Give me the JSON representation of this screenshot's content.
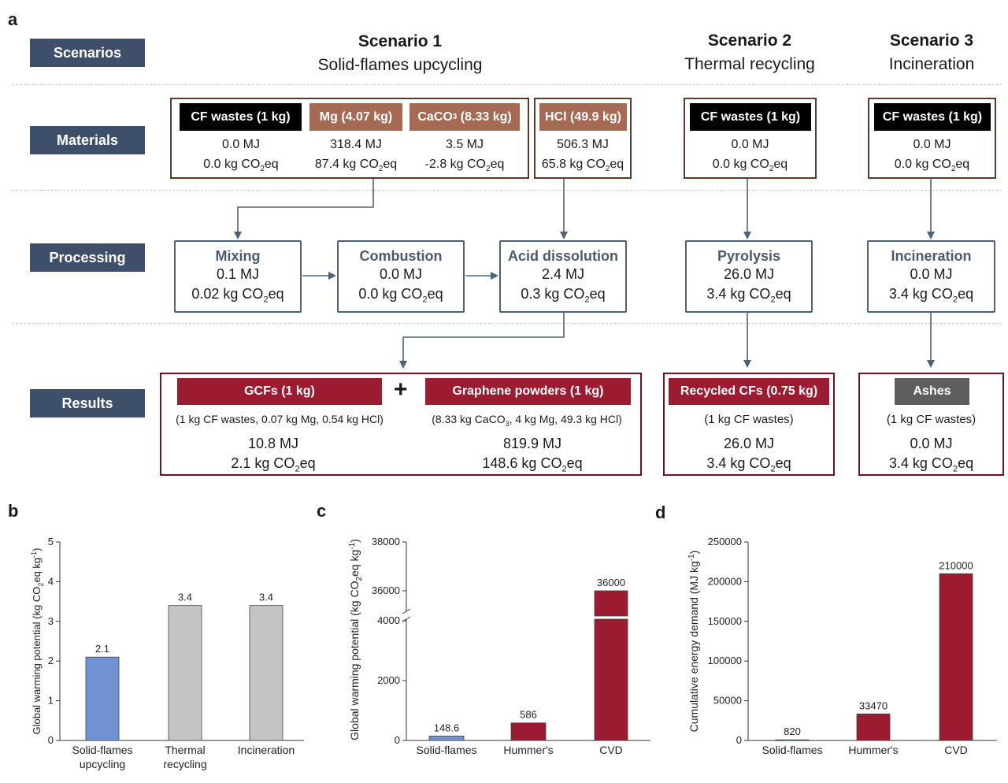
{
  "panel_a": {
    "letter": "a",
    "row_labels": {
      "scenarios": "Scenarios",
      "materials": "Materials",
      "processing": "Processing",
      "results": "Results"
    },
    "scenarios": [
      {
        "title": "Scenario 1",
        "subtitle": "Solid-flames upcycling"
      },
      {
        "title": "Scenario 2",
        "subtitle": "Thermal recycling"
      },
      {
        "title": "Scenario 3",
        "subtitle": "Incineration"
      }
    ],
    "materials": {
      "s1": [
        {
          "label": "CF wastes (1 kg)",
          "energy": "0.0 MJ",
          "co2": "0.0 kg CO",
          "co2_sub": "2",
          "co2_tail": "eq"
        },
        {
          "label": "Mg (4.07 kg)",
          "energy": "318.4 MJ",
          "co2": "87.4 kg CO",
          "co2_sub": "2",
          "co2_tail": "eq"
        },
        {
          "label_main": "CaCO",
          "label_sub": "3",
          "label_tail": " (8.33 kg)",
          "energy": "3.5 MJ",
          "co2": "-2.8 kg CO",
          "co2_sub": "2",
          "co2_tail": "eq"
        }
      ],
      "hcl": {
        "label": "HCl (49.9 kg)",
        "energy": "506.3 MJ",
        "co2": "65.8 kg CO",
        "co2_sub": "2",
        "co2_tail": "eq"
      },
      "s2": {
        "label": "CF wastes (1 kg)",
        "energy": "0.0 MJ",
        "co2": "0.0 kg CO",
        "co2_sub": "2",
        "co2_tail": "eq"
      },
      "s3": {
        "label": "CF wastes (1 kg)",
        "energy": "0.0 MJ",
        "co2": "0.0 kg CO",
        "co2_sub": "2",
        "co2_tail": "eq"
      }
    },
    "processing": [
      {
        "title": "Mixing",
        "energy": "0.1 MJ",
        "co2": "0.02 kg CO",
        "co2_sub": "2",
        "co2_tail": "eq"
      },
      {
        "title": "Combustion",
        "energy": "0.0 MJ",
        "co2": "0.0 kg CO",
        "co2_sub": "2",
        "co2_tail": "eq"
      },
      {
        "title": "Acid dissolution",
        "energy": "2.4 MJ",
        "co2": "0.3 kg CO",
        "co2_sub": "2",
        "co2_tail": "eq"
      },
      {
        "title": "Pyrolysis",
        "energy": "26.0 MJ",
        "co2": "3.4 kg CO",
        "co2_sub": "2",
        "co2_tail": "eq"
      },
      {
        "title": "Incineration",
        "energy": "0.0 MJ",
        "co2": "3.4 kg CO",
        "co2_sub": "2",
        "co2_tail": "eq"
      }
    ],
    "results": {
      "gcf": {
        "label": "GCFs (1 kg)",
        "note": "(1 kg CF wastes, 0.07 kg Mg, 0.54 kg HCl)",
        "energy": "10.8 MJ",
        "co2": "2.1 kg CO",
        "co2_sub": "2",
        "co2_tail": "eq"
      },
      "plus": "+",
      "graphene": {
        "label": "Graphene powders (1 kg)",
        "note_a": "(8.33 kg CaCO",
        "note_sub": "3",
        "note_b": ", 4 kg Mg, 49.3 kg HCl)",
        "energy": "819.9 MJ",
        "co2": "148.6 kg CO",
        "co2_sub": "2",
        "co2_tail": "eq"
      },
      "recycled": {
        "label": "Recycled CFs (0.75 kg)",
        "note": "(1 kg CF wastes)",
        "energy": "26.0 MJ",
        "co2": "3.4 kg CO",
        "co2_sub": "2",
        "co2_tail": "eq"
      },
      "ashes": {
        "label": "Ashes",
        "note": "(1 kg CF wastes)",
        "energy": "0.0 MJ",
        "co2": "3.4 kg CO",
        "co2_sub": "2",
        "co2_tail": "eq"
      }
    }
  },
  "chart_data": [
    {
      "panel": "b",
      "type": "bar",
      "categories": [
        "Solid-flames upcycling",
        "Thermal recycling",
        "Incineration"
      ],
      "category_lines": [
        [
          "Solid-flames",
          "upcycling"
        ],
        [
          "Thermal",
          "recycling"
        ],
        [
          "Incineration"
        ]
      ],
      "values": [
        2.1,
        3.4,
        3.4
      ],
      "value_labels": [
        "2.1",
        "3.4",
        "3.4"
      ],
      "bar_colors": [
        "#6f93d2",
        "#c4c4c4",
        "#c4c4c4"
      ],
      "ylabel": "Global warming potential (kg CO2eq kg-1)",
      "ylim": [
        0,
        5
      ],
      "yticks": [
        0,
        1,
        2,
        3,
        4,
        5
      ]
    },
    {
      "panel": "c",
      "type": "bar",
      "categories": [
        "Solid-flames",
        "Hummer's",
        "CVD"
      ],
      "values": [
        148.6,
        586,
        36000
      ],
      "value_labels": [
        "148.6",
        "586",
        "36000"
      ],
      "bar_colors": [
        "#6f93d2",
        "#9c1b30",
        "#9c1b30"
      ],
      "ylabel": "Global warming potential (kg CO2eq kg-1)",
      "axis_break": {
        "lower_range": [
          0,
          5000
        ],
        "upper_range": [
          35000,
          38000
        ]
      },
      "yticks": [
        0,
        2000,
        4000,
        36000,
        38000
      ]
    },
    {
      "panel": "d",
      "type": "bar",
      "categories": [
        "Solid-flames",
        "Hummer's",
        "CVD"
      ],
      "values": [
        820,
        33470,
        210000
      ],
      "value_labels": [
        "820",
        "33470",
        "210000"
      ],
      "bar_colors": [
        "#9c1b30",
        "#9c1b30",
        "#9c1b30"
      ],
      "ylabel": "Cumulative energy demand (MJ kg-1)",
      "ylim": [
        0,
        250000
      ],
      "yticks": [
        0,
        50000,
        100000,
        150000,
        200000,
        250000
      ]
    }
  ]
}
